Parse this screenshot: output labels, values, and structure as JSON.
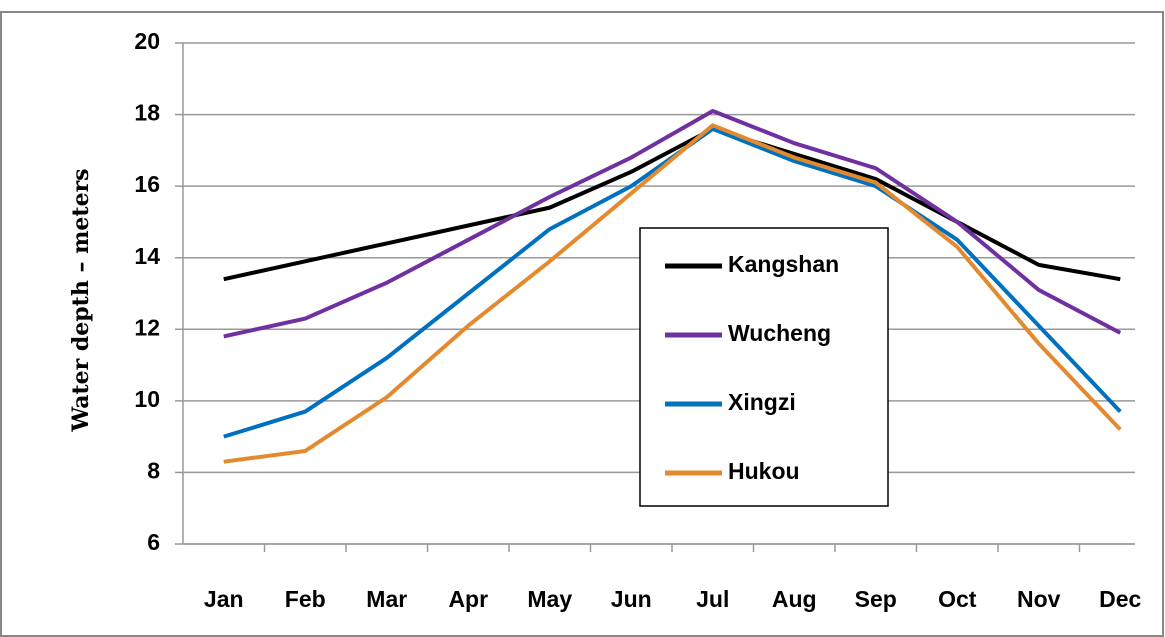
{
  "chart_data": {
    "type": "line",
    "y_label": "Water depth – meters",
    "categories": [
      "Jan",
      "Feb",
      "Mar",
      "Apr",
      "May",
      "Jun",
      "Jul",
      "Aug",
      "Sep",
      "Oct",
      "Nov",
      "Dec"
    ],
    "series": [
      {
        "name": "Kangshan",
        "color": "#000000",
        "values": [
          13.4,
          13.9,
          14.4,
          14.9,
          15.4,
          16.4,
          17.6,
          16.9,
          16.2,
          15.0,
          13.8,
          13.4
        ]
      },
      {
        "name": "Wucheng",
        "color": "#7030a0",
        "values": [
          11.8,
          12.3,
          13.3,
          14.5,
          15.7,
          16.8,
          18.1,
          17.2,
          16.5,
          15.0,
          13.1,
          11.9
        ]
      },
      {
        "name": "Xingzi",
        "color": "#0070c0",
        "values": [
          9.0,
          9.7,
          11.2,
          13.0,
          14.8,
          16.0,
          17.6,
          16.7,
          16.0,
          14.5,
          12.1,
          9.7
        ]
      },
      {
        "name": "Hukou",
        "color": "#e48a2e",
        "values": [
          8.3,
          8.6,
          10.1,
          12.1,
          13.9,
          15.8,
          17.7,
          16.8,
          16.1,
          14.3,
          11.6,
          9.2
        ]
      }
    ],
    "ylim": [
      6,
      20
    ],
    "yticks": [
      6,
      8,
      10,
      12,
      14,
      16,
      18,
      20
    ],
    "grid": true
  }
}
